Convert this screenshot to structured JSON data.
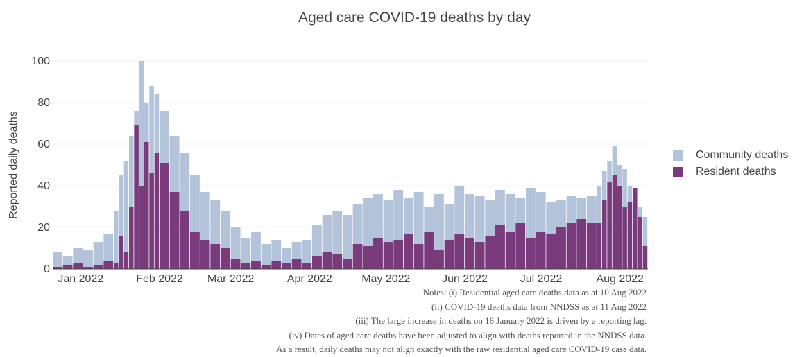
{
  "chart_data": {
    "type": "bar",
    "title": "Aged care COVID-19 deaths by day",
    "ylabel": "Reported daily deaths",
    "xlabel": "",
    "ylim": [
      0,
      100
    ],
    "yticks": [
      0,
      20,
      40,
      60,
      80,
      100
    ],
    "grid": true,
    "barmode": "overlay",
    "legend_position": "right",
    "x_start": "2021-12-21",
    "x_end": "2022-08-12",
    "xticks": [
      {
        "date": "2022-01-01",
        "label": "Jan 2022"
      },
      {
        "date": "2022-02-01",
        "label": "Feb 2022"
      },
      {
        "date": "2022-03-01",
        "label": "Mar 2022"
      },
      {
        "date": "2022-04-01",
        "label": "Apr 2022"
      },
      {
        "date": "2022-05-01",
        "label": "May 2022"
      },
      {
        "date": "2022-06-01",
        "label": "Jun 2022"
      },
      {
        "date": "2022-07-01",
        "label": "Jul 2022"
      },
      {
        "date": "2022-08-01",
        "label": "Aug 2022"
      }
    ],
    "series": [
      {
        "name": "Community deaths",
        "color": "#b3c3da",
        "x": [
          "2021-12-21",
          "2021-12-25",
          "2021-12-29",
          "2022-01-02",
          "2022-01-06",
          "2022-01-10",
          "2022-01-14",
          "2022-01-16",
          "2022-01-18",
          "2022-01-20",
          "2022-01-22",
          "2022-01-24",
          "2022-01-26",
          "2022-01-28",
          "2022-01-30",
          "2022-02-01",
          "2022-02-05",
          "2022-02-09",
          "2022-02-13",
          "2022-02-17",
          "2022-02-21",
          "2022-02-25",
          "2022-03-01",
          "2022-03-05",
          "2022-03-09",
          "2022-03-13",
          "2022-03-17",
          "2022-03-21",
          "2022-03-25",
          "2022-03-29",
          "2022-04-02",
          "2022-04-06",
          "2022-04-10",
          "2022-04-14",
          "2022-04-18",
          "2022-04-22",
          "2022-04-26",
          "2022-04-30",
          "2022-05-04",
          "2022-05-08",
          "2022-05-12",
          "2022-05-16",
          "2022-05-20",
          "2022-05-24",
          "2022-05-28",
          "2022-06-01",
          "2022-06-05",
          "2022-06-09",
          "2022-06-13",
          "2022-06-17",
          "2022-06-21",
          "2022-06-25",
          "2022-06-29",
          "2022-07-03",
          "2022-07-07",
          "2022-07-11",
          "2022-07-15",
          "2022-07-19",
          "2022-07-23",
          "2022-07-25",
          "2022-07-27",
          "2022-07-29",
          "2022-07-31",
          "2022-08-02",
          "2022-08-04",
          "2022-08-06",
          "2022-08-08",
          "2022-08-10"
        ],
        "values": [
          8,
          6,
          10,
          9,
          13,
          17,
          28,
          45,
          52,
          64,
          76,
          100,
          80,
          88,
          84,
          76,
          64,
          56,
          45,
          37,
          33,
          28,
          20,
          15,
          18,
          12,
          14,
          10,
          13,
          14,
          21,
          26,
          28,
          26,
          31,
          34,
          36,
          33,
          38,
          34,
          37,
          30,
          36,
          31,
          40,
          36,
          35,
          33,
          38,
          36,
          34,
          39,
          37,
          32,
          33,
          35,
          34,
          35,
          40,
          47,
          52,
          59,
          50,
          48,
          40,
          38,
          30,
          25
        ]
      },
      {
        "name": "Resident deaths",
        "color": "#7a3b7c",
        "x": [
          "2021-12-21",
          "2021-12-25",
          "2021-12-29",
          "2022-01-02",
          "2022-01-06",
          "2022-01-10",
          "2022-01-14",
          "2022-01-16",
          "2022-01-18",
          "2022-01-20",
          "2022-01-22",
          "2022-01-24",
          "2022-01-26",
          "2022-01-28",
          "2022-01-30",
          "2022-02-01",
          "2022-02-05",
          "2022-02-09",
          "2022-02-13",
          "2022-02-17",
          "2022-02-21",
          "2022-02-25",
          "2022-03-01",
          "2022-03-05",
          "2022-03-09",
          "2022-03-13",
          "2022-03-17",
          "2022-03-21",
          "2022-03-25",
          "2022-03-29",
          "2022-04-02",
          "2022-04-06",
          "2022-04-10",
          "2022-04-14",
          "2022-04-18",
          "2022-04-22",
          "2022-04-26",
          "2022-04-30",
          "2022-05-04",
          "2022-05-08",
          "2022-05-12",
          "2022-05-16",
          "2022-05-20",
          "2022-05-24",
          "2022-05-28",
          "2022-06-01",
          "2022-06-05",
          "2022-06-09",
          "2022-06-13",
          "2022-06-17",
          "2022-06-21",
          "2022-06-25",
          "2022-06-29",
          "2022-07-03",
          "2022-07-07",
          "2022-07-11",
          "2022-07-15",
          "2022-07-19",
          "2022-07-23",
          "2022-07-25",
          "2022-07-27",
          "2022-07-29",
          "2022-07-31",
          "2022-08-02",
          "2022-08-04",
          "2022-08-06",
          "2022-08-08",
          "2022-08-10"
        ],
        "values": [
          1,
          2,
          3,
          1,
          2,
          4,
          3,
          16,
          8,
          30,
          69,
          40,
          61,
          46,
          56,
          51,
          37,
          28,
          18,
          14,
          12,
          10,
          5,
          3,
          4,
          2,
          4,
          3,
          5,
          3,
          6,
          8,
          7,
          5,
          12,
          11,
          15,
          13,
          14,
          17,
          12,
          18,
          9,
          14,
          17,
          15,
          13,
          16,
          21,
          18,
          22,
          15,
          18,
          17,
          20,
          22,
          24,
          22,
          22,
          33,
          42,
          45,
          40,
          30,
          32,
          39,
          25,
          11
        ]
      }
    ],
    "notes": [
      "Notes: (i) Residential aged care deaths data as at 10 Aug 2022",
      "(ii) COVID-19 deaths data from NNDSS as at 11 Aug 2022",
      "(iii) The large increase in deaths on 16 January 2022 is driven by a reporting lag.",
      "(iv) Dates of aged care deaths have been adjusted to align with deaths reported in the NNDSS data.",
      "As a result, daily deaths may not align exactly with the raw residential aged care COVID-19 case data."
    ]
  }
}
